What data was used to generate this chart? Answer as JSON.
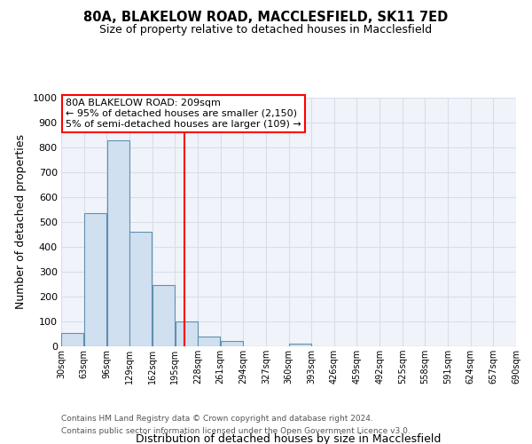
{
  "title": "80A, BLAKELOW ROAD, MACCLESFIELD, SK11 7ED",
  "subtitle": "Size of property relative to detached houses in Macclesfield",
  "xlabel": "Distribution of detached houses by size in Macclesfield",
  "ylabel": "Number of detached properties",
  "bin_edges": [
    30,
    63,
    96,
    129,
    162,
    195,
    228,
    261,
    294,
    327,
    360,
    393,
    426,
    459,
    492,
    525,
    558,
    591,
    624,
    657,
    690
  ],
  "bin_counts": [
    55,
    535,
    830,
    460,
    245,
    100,
    40,
    20,
    0,
    0,
    10,
    0,
    0,
    0,
    0,
    0,
    0,
    0,
    0,
    0
  ],
  "bar_color": "#d0e0f0",
  "bar_edge_color": "#6090b0",
  "vertical_line_x": 209,
  "vertical_line_color": "red",
  "annotation_line1": "80A BLAKELOW ROAD: 209sqm",
  "annotation_line2": "← 95% of detached houses are smaller (2,150)",
  "annotation_line3": "5% of semi-detached houses are larger (109) →",
  "annotation_box_color": "white",
  "annotation_box_edge_color": "red",
  "ylim": [
    0,
    1000
  ],
  "background_color": "#ffffff",
  "plot_bg_color": "#f0f4fa",
  "grid_color": "#d8dde8",
  "footer_line1": "Contains HM Land Registry data © Crown copyright and database right 2024.",
  "footer_line2": "Contains public sector information licensed under the Open Government Licence v3.0.",
  "tick_labels": [
    "30sqm",
    "63sqm",
    "96sqm",
    "129sqm",
    "162sqm",
    "195sqm",
    "228sqm",
    "261sqm",
    "294sqm",
    "327sqm",
    "360sqm",
    "393sqm",
    "426sqm",
    "459sqm",
    "492sqm",
    "525sqm",
    "558sqm",
    "591sqm",
    "624sqm",
    "657sqm",
    "690sqm"
  ]
}
